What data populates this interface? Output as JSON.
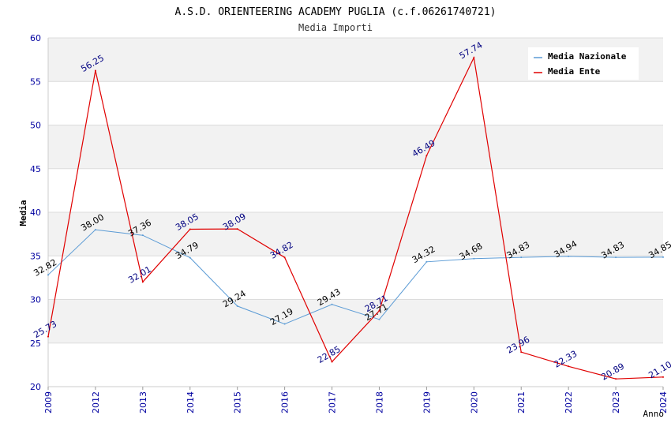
{
  "chart_data": {
    "type": "line",
    "title": "A.S.D. ORIENTEERING ACADEMY PUGLIA (c.f.06261740721)",
    "subtitle": "Media Importi",
    "xlabel": "Anno",
    "ylabel": "Media",
    "categories": [
      "2009",
      "2012",
      "2013",
      "2014",
      "2015",
      "2016",
      "2017",
      "2018",
      "2019",
      "2020",
      "2021",
      "2022",
      "2023",
      "2024"
    ],
    "ylim": [
      20,
      60
    ],
    "yticks": [
      20,
      25,
      30,
      35,
      40,
      45,
      50,
      55,
      60
    ],
    "grid": true,
    "legend_position": "top-right",
    "series": [
      {
        "name": "Media Nazionale",
        "color": "#5b9bd5",
        "label_color": "#000000",
        "values": [
          32.82,
          38.0,
          37.36,
          34.79,
          29.24,
          27.19,
          29.43,
          27.71,
          34.32,
          34.68,
          34.83,
          34.94,
          34.83,
          34.85
        ],
        "labels": [
          "32.82",
          "38.00",
          "37.36",
          "34.79",
          "29.24",
          "27.19",
          "29.43",
          "27.71",
          "34.32",
          "34.68",
          "34.83",
          "34.94",
          "34.83",
          "34.85"
        ]
      },
      {
        "name": "Media Ente",
        "color": "#e00000",
        "label_color": "#000080",
        "values": [
          25.73,
          56.25,
          32.01,
          38.05,
          38.09,
          34.82,
          22.85,
          28.71,
          46.49,
          57.74,
          23.96,
          22.33,
          20.89,
          21.1
        ],
        "labels": [
          "25.73",
          "56.25",
          "32.01",
          "38.05",
          "38.09",
          "34.82",
          "22.85",
          "28.71",
          "46.49",
          "57.74",
          "23.96",
          "22.33",
          "20.89",
          "21.10"
        ]
      }
    ]
  }
}
